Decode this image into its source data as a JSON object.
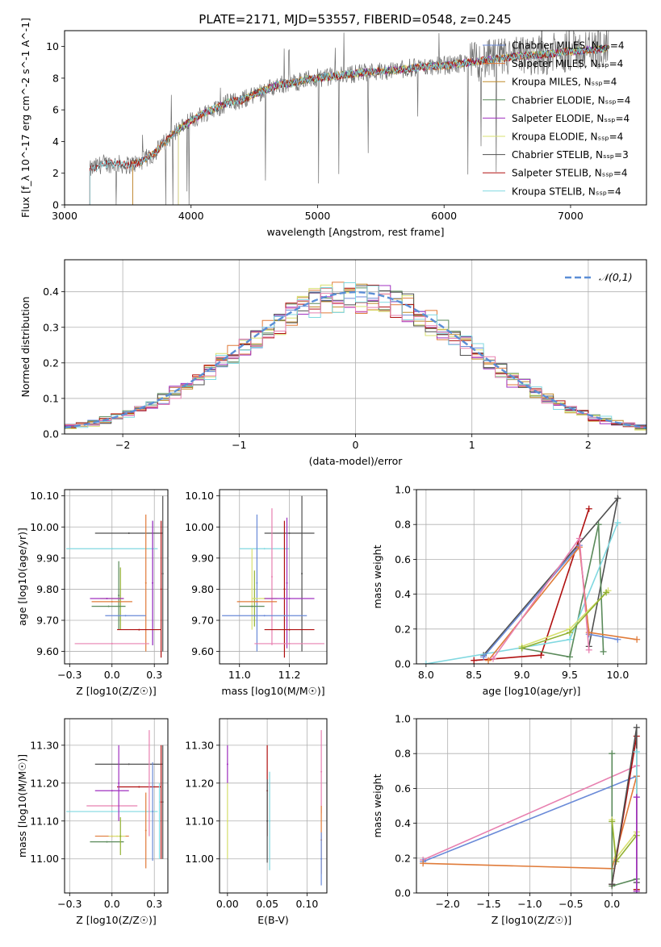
{
  "page_title": "PLATE=2171, MJD=53557, FIBERID=0548, z=0.245",
  "colors": {
    "Chabrier MILES": "#6a8ad8",
    "Salpeter MILES": "#e07b39",
    "Kroupa MILES": "#c08a28",
    "Chabrier ELODIE": "#5a8a5a",
    "Salpeter ELODIE": "#a030c0",
    "Kroupa ELODIE": "#d8e070",
    "Chabrier STELIB": "#505050",
    "Salpeter STELIB": "#b01010",
    "Kroupa STELIB": "#80d8e0",
    "Pink": "#e880b0",
    "Olive": "#90b030",
    "Data": "#707070"
  },
  "chart_data": [
    {
      "id": "spectrum",
      "type": "line",
      "title": "PLATE=2171, MJD=53557, FIBERID=0548, z=0.245",
      "xlabel": "wavelength [Angstrom, rest frame]",
      "ylabel": "Flux [f_λ 10^-17 erg cm^-2 s^-1 A^-1]",
      "xlim": [
        3000,
        7600
      ],
      "ylim": [
        0,
        11
      ],
      "xticks": [
        3000,
        4000,
        5000,
        6000,
        7000
      ],
      "yticks": [
        0,
        2,
        4,
        6,
        8,
        10
      ],
      "grid": false,
      "legend_position": "upper-right",
      "legend": [
        "Chabrier MILES, N_SSP=4",
        "Salpeter MILES, N_SSP=4",
        "Kroupa MILES, N_SSP=4",
        "Chabrier ELODIE, N_SSP=4",
        "Salpeter ELODIE, N_SSP=4",
        "Kroupa ELODIE, N_SSP=4",
        "Chabrier STELIB, N_SSP=3",
        "Salpeter STELIB, N_SSP=4",
        "Kroupa STELIB, N_SSP=4"
      ],
      "legend_series": [
        "Chabrier MILES",
        "Salpeter MILES",
        "Kroupa MILES",
        "Chabrier ELODIE",
        "Salpeter ELODIE",
        "Kroupa ELODIE",
        "Chabrier STELIB",
        "Salpeter STELIB",
        "Kroupa STELIB"
      ],
      "continuum": {
        "x": [
          3200,
          3300,
          3400,
          3500,
          3600,
          3700,
          3800,
          3900,
          4000,
          4100,
          4200,
          4300,
          4400,
          4500,
          4600,
          4700,
          4800,
          4900,
          5000,
          5200,
          5400,
          5600,
          5800,
          6000,
          6200,
          6400,
          6600,
          6800,
          7000,
          7200,
          7300
        ],
        "y": [
          2.2,
          2.6,
          2.6,
          2.5,
          2.7,
          3.2,
          4.0,
          4.8,
          5.3,
          5.8,
          6.1,
          6.5,
          6.6,
          7.0,
          7.3,
          7.6,
          7.7,
          7.9,
          8.0,
          8.2,
          8.4,
          8.5,
          8.7,
          8.8,
          9.0,
          9.2,
          9.4,
          9.5,
          9.7,
          9.8,
          9.9
        ]
      },
      "model_starts": {
        "Chabrier MILES": 3540,
        "Salpeter MILES": 3540,
        "Kroupa MILES": 3540,
        "Chabrier ELODIE": 3900,
        "Salpeter ELODIE": 3900,
        "Kroupa ELODIE": 3900,
        "Chabrier STELIB": 3200,
        "Salpeter STELIB": 3200,
        "Kroupa STELIB": 3200
      }
    },
    {
      "id": "residuals",
      "type": "histogram",
      "xlabel": "(data-model)/error",
      "ylabel": "Normed distribution",
      "xlim": [
        -2.5,
        2.5
      ],
      "ylim": [
        0,
        0.49
      ],
      "xticks": [
        -2,
        -1,
        0,
        1,
        2
      ],
      "yticks": [
        0.0,
        0.1,
        0.2,
        0.3,
        0.4
      ],
      "grid": true,
      "legend_position": "upper-right",
      "legend": [
        "𝒩(0,1)"
      ],
      "bin_width": 0.1,
      "series": [
        "Chabrier MILES",
        "Salpeter MILES",
        "Kroupa MILES",
        "Chabrier ELODIE",
        "Salpeter ELODIE",
        "Kroupa ELODIE",
        "Chabrier STELIB",
        "Salpeter STELIB",
        "Kroupa STELIB",
        "Pink"
      ]
    },
    {
      "id": "age-vs-Z",
      "type": "scatter",
      "xlabel": "Z [log10(Z/Z☉)]",
      "ylabel": "age  [log10(age/yr)]",
      "xlim": [
        -0.28,
        0.33
      ],
      "ylim": [
        9.56,
        10.12
      ],
      "xticks": [
        -0.25,
        0.0,
        0.25
      ],
      "yticks": [
        9.6,
        9.7,
        9.8,
        9.9,
        10.0,
        10.1
      ],
      "grid": true,
      "points": [
        {
          "series": "Kroupa STELIB",
          "x": 0.0,
          "y": 9.93,
          "xerr": 0.27,
          "yerr": 0.0
        },
        {
          "series": "Chabrier STELIB",
          "x": 0.1,
          "y": 9.98,
          "xerr": 0.2,
          "yerr": 0.0
        },
        {
          "series": "Chabrier STELIB",
          "x": 0.3,
          "y": 9.85,
          "xerr": 0.0,
          "yerr": 0.25
        },
        {
          "series": "Salpeter STELIB",
          "x": 0.29,
          "y": 9.8,
          "xerr": 0.0,
          "yerr": 0.22
        },
        {
          "series": "Salpeter MILES",
          "x": 0.2,
          "y": 9.82,
          "xerr": 0.0,
          "yerr": 0.22
        },
        {
          "series": "Chabrier MILES",
          "x": 0.24,
          "y": 9.82,
          "xerr": 0.0,
          "yerr": 0.2
        },
        {
          "series": "Salpeter ELODIE",
          "x": 0.24,
          "y": 9.82,
          "xerr": 0.0,
          "yerr": 0.2
        },
        {
          "series": "Chabrier ELODIE",
          "x": 0.04,
          "y": 9.78,
          "xerr": 0.0,
          "yerr": 0.11
        },
        {
          "series": "Olive",
          "x": 0.05,
          "y": 9.77,
          "xerr": 0.0,
          "yerr": 0.1
        },
        {
          "series": "Kroupa ELODIE",
          "x": 0.0,
          "y": 9.77,
          "xerr": 0.07,
          "yerr": 0.0
        },
        {
          "series": "Salpeter ELODIE",
          "x": -0.03,
          "y": 9.77,
          "xerr": 0.1,
          "yerr": 0.0
        },
        {
          "series": "Salpeter MILES",
          "x": 0.0,
          "y": 9.76,
          "xerr": 0.12,
          "yerr": 0.0
        },
        {
          "series": "Chabrier ELODIE",
          "x": -0.02,
          "y": 9.745,
          "xerr": 0.1,
          "yerr": 0.0
        },
        {
          "series": "Chabrier MILES",
          "x": 0.08,
          "y": 9.715,
          "xerr": 0.12,
          "yerr": 0.0
        },
        {
          "series": "Salpeter STELIB",
          "x": 0.16,
          "y": 9.67,
          "xerr": 0.13,
          "yerr": 0.0
        },
        {
          "series": "Pink",
          "x": 0.0,
          "y": 9.625,
          "xerr": 0.22,
          "yerr": 0.0
        }
      ]
    },
    {
      "id": "age-vs-mass",
      "type": "scatter",
      "xlabel": "mass [log10(M/M☉)]",
      "ylabel": "",
      "xlim": [
        10.92,
        11.35
      ],
      "ylim": [
        9.56,
        10.12
      ],
      "xticks": [
        11.0,
        11.2
      ],
      "yticks": [
        9.6,
        9.7,
        9.8,
        9.9,
        10.0,
        10.1
      ],
      "grid": true,
      "points": [
        {
          "series": "Kroupa STELIB",
          "x": 11.1,
          "y": 9.93,
          "xerr": 0.1,
          "yerr": 0.0
        },
        {
          "series": "Chabrier STELIB",
          "x": 11.2,
          "y": 9.98,
          "xerr": 0.1,
          "yerr": 0.0
        },
        {
          "series": "Chabrier STELIB",
          "x": 11.25,
          "y": 9.85,
          "xerr": 0.0,
          "yerr": 0.25
        },
        {
          "series": "Salpeter STELIB",
          "x": 11.18,
          "y": 9.8,
          "xerr": 0.0,
          "yerr": 0.22
        },
        {
          "series": "Chabrier MILES",
          "x": 11.07,
          "y": 9.82,
          "xerr": 0.0,
          "yerr": 0.22
        },
        {
          "series": "Salpeter ELODIE",
          "x": 11.19,
          "y": 9.82,
          "xerr": 0.0,
          "yerr": 0.21
        },
        {
          "series": "Pink",
          "x": 11.13,
          "y": 9.84,
          "xerr": 0.0,
          "yerr": 0.22
        },
        {
          "series": "Kroupa ELODIE",
          "x": 11.05,
          "y": 9.8,
          "xerr": 0.0,
          "yerr": 0.13
        },
        {
          "series": "Olive",
          "x": 11.06,
          "y": 9.77,
          "xerr": 0.0,
          "yerr": 0.09
        },
        {
          "series": "Kroupa ELODIE",
          "x": 11.1,
          "y": 9.77,
          "xerr": 0.05,
          "yerr": 0.0
        },
        {
          "series": "Salpeter ELODIE",
          "x": 11.2,
          "y": 9.77,
          "xerr": 0.1,
          "yerr": 0.0
        },
        {
          "series": "Salpeter MILES",
          "x": 11.07,
          "y": 9.76,
          "xerr": 0.08,
          "yerr": 0.0
        },
        {
          "series": "Chabrier ELODIE",
          "x": 11.05,
          "y": 9.745,
          "xerr": 0.05,
          "yerr": 0.0
        },
        {
          "series": "Chabrier MILES",
          "x": 11.1,
          "y": 9.715,
          "xerr": 0.17,
          "yerr": 0.0
        },
        {
          "series": "Salpeter STELIB",
          "x": 11.2,
          "y": 9.67,
          "xerr": 0.1,
          "yerr": 0.0
        },
        {
          "series": "Pink",
          "x": 11.2,
          "y": 9.625,
          "xerr": 0.14,
          "yerr": 0.0
        }
      ]
    },
    {
      "id": "weight-vs-age",
      "type": "line",
      "xlabel": "age  [log10(age/yr)]",
      "ylabel": "mass weight",
      "xlim": [
        7.9,
        10.3
      ],
      "ylim": [
        0,
        1
      ],
      "xticks": [
        8.0,
        8.5,
        9.0,
        9.5,
        10.0
      ],
      "yticks": [
        0.0,
        0.2,
        0.4,
        0.6,
        0.8,
        1.0
      ],
      "grid": true,
      "series": [
        {
          "name": "Chabrier STELIB",
          "x": [
            8.6,
            10.0,
            9.7
          ],
          "y": [
            0.05,
            0.95,
            0.1
          ]
        },
        {
          "name": "Salpeter STELIB",
          "x": [
            8.5,
            9.2,
            9.7
          ],
          "y": [
            0.02,
            0.05,
            0.89
          ]
        },
        {
          "name": "Chabrier ELODIE",
          "x": [
            9.0,
            9.5,
            9.8,
            9.85
          ],
          "y": [
            0.09,
            0.04,
            0.8,
            0.07
          ]
        },
        {
          "name": "Kroupa STELIB",
          "x": [
            8.0,
            9.5,
            10.0
          ],
          "y": [
            0.0,
            0.14,
            0.81
          ]
        },
        {
          "name": "Chabrier MILES",
          "x": [
            8.6,
            9.6,
            9.7,
            10.0
          ],
          "y": [
            0.04,
            0.68,
            0.17,
            0.14
          ]
        },
        {
          "name": "Salpeter MILES",
          "x": [
            8.65,
            9.6,
            9.7,
            10.2
          ],
          "y": [
            0.02,
            0.67,
            0.18,
            0.14
          ]
        },
        {
          "name": "Pink",
          "x": [
            8.7,
            9.6,
            9.7
          ],
          "y": [
            0.03,
            0.72,
            0.08
          ]
        },
        {
          "name": "Kroupa ELODIE",
          "x": [
            9.0,
            9.5,
            9.9
          ],
          "y": [
            0.1,
            0.2,
            0.42
          ]
        },
        {
          "name": "Olive",
          "x": [
            9.0,
            9.5,
            9.88
          ],
          "y": [
            0.09,
            0.18,
            0.41
          ]
        }
      ]
    },
    {
      "id": "mass-vs-Z",
      "type": "scatter",
      "xlabel": "Z [log10(Z/Z☉)]",
      "ylabel": "mass [log10(M/M☉)]",
      "xlim": [
        -0.28,
        0.33
      ],
      "ylim": [
        10.91,
        11.37
      ],
      "xticks": [
        -0.25,
        0.0,
        0.25
      ],
      "yticks": [
        11.0,
        11.1,
        11.2,
        11.3
      ],
      "grid": true,
      "points": [
        {
          "series": "Chabrier STELIB",
          "x": 0.1,
          "y": 11.25,
          "xerr": 0.2,
          "yerr": 0.0
        },
        {
          "series": "Kroupa STELIB",
          "x": 0.0,
          "y": 11.125,
          "xerr": 0.27,
          "yerr": 0.0
        },
        {
          "series": "Salpeter ELODIE",
          "x": 0.0,
          "y": 11.18,
          "xerr": 0.1,
          "yerr": 0.0
        },
        {
          "series": "Salpeter STELIB",
          "x": 0.16,
          "y": 11.19,
          "xerr": 0.13,
          "yerr": 0.0
        },
        {
          "series": "Pink",
          "x": 0.0,
          "y": 11.14,
          "xerr": 0.15,
          "yerr": 0.0
        },
        {
          "series": "Salpeter MILES",
          "x": 0.0,
          "y": 11.06,
          "xerr": 0.1,
          "yerr": 0.0
        },
        {
          "series": "Chabrier ELODIE",
          "x": -0.03,
          "y": 11.045,
          "xerr": 0.1,
          "yerr": 0.0
        },
        {
          "series": "Kroupa ELODIE",
          "x": 0.03,
          "y": 11.06,
          "xerr": 0.05,
          "yerr": 0.0
        },
        {
          "series": "Salpeter ELODIE",
          "x": 0.04,
          "y": 11.2,
          "xerr": 0.0,
          "yerr": 0.1
        },
        {
          "series": "Olive",
          "x": 0.05,
          "y": 11.06,
          "xerr": 0.0,
          "yerr": 0.05
        },
        {
          "series": "Pink",
          "x": 0.22,
          "y": 11.2,
          "xerr": 0.0,
          "yerr": 0.14
        },
        {
          "series": "Salpeter MILES",
          "x": 0.2,
          "y": 11.075,
          "xerr": 0.0,
          "yerr": 0.1
        },
        {
          "series": "Chabrier MILES",
          "x": 0.24,
          "y": 11.125,
          "xerr": 0.0,
          "yerr": 0.13
        },
        {
          "series": "Kroupa STELIB",
          "x": 0.28,
          "y": 11.1,
          "xerr": 0.0,
          "yerr": 0.1
        },
        {
          "series": "Chabrier STELIB",
          "x": 0.3,
          "y": 11.15,
          "xerr": 0.0,
          "yerr": 0.15
        },
        {
          "series": "Salpeter STELIB",
          "x": 0.29,
          "y": 11.15,
          "xerr": 0.0,
          "yerr": 0.15
        }
      ]
    },
    {
      "id": "mass-vs-ebv",
      "type": "scatter",
      "xlabel": "E(B-V)",
      "ylabel": "",
      "xlim": [
        -0.01,
        0.125
      ],
      "ylim": [
        10.91,
        11.37
      ],
      "xticks": [
        0.0,
        0.05,
        0.1
      ],
      "yticks": [
        11.0,
        11.1,
        11.2,
        11.3
      ],
      "grid": true,
      "points": [
        {
          "series": "Salpeter ELODIE",
          "x": 0.0,
          "y": 11.25,
          "xerr": 0.0,
          "yerr": 0.05
        },
        {
          "series": "Kroupa ELODIE",
          "x": 0.0,
          "y": 11.1,
          "xerr": 0.0,
          "yerr": 0.1
        },
        {
          "series": "Salpeter STELIB",
          "x": 0.05,
          "y": 11.18,
          "xerr": 0.0,
          "yerr": 0.12
        },
        {
          "series": "Chabrier STELIB",
          "x": 0.05,
          "y": 11.1,
          "xerr": 0.0,
          "yerr": 0.11
        },
        {
          "series": "Kroupa STELIB",
          "x": 0.053,
          "y": 11.1,
          "xerr": 0.0,
          "yerr": 0.13
        },
        {
          "series": "Pink",
          "x": 0.118,
          "y": 11.23,
          "xerr": 0.0,
          "yerr": 0.11
        },
        {
          "series": "Salpeter MILES",
          "x": 0.118,
          "y": 11.05,
          "xerr": 0.0,
          "yerr": 0.09
        },
        {
          "series": "Chabrier MILES",
          "x": 0.118,
          "y": 11.0,
          "xerr": 0.0,
          "yerr": 0.07
        }
      ]
    },
    {
      "id": "weight-vs-Z",
      "type": "line",
      "xlabel": "Z [log10(Z/Z☉)]",
      "ylabel": "mass weight",
      "xlim": [
        -2.38,
        0.42
      ],
      "ylim": [
        0,
        1
      ],
      "xticks": [
        -2.0,
        -1.5,
        -1.0,
        -0.5,
        0.0
      ],
      "yticks": [
        0.0,
        0.2,
        0.4,
        0.6,
        0.8,
        1.0
      ],
      "grid": true,
      "series": [
        {
          "name": "Pink",
          "x": [
            -2.3,
            0.3
          ],
          "y": [
            0.19,
            0.73
          ]
        },
        {
          "name": "Chabrier MILES",
          "x": [
            -2.3,
            0.3
          ],
          "y": [
            0.18,
            0.67
          ]
        },
        {
          "name": "Salpeter MILES",
          "x": [
            -2.3,
            0.0,
            0.3,
            0.3
          ],
          "y": [
            0.17,
            0.14,
            0.67,
            0.01
          ]
        },
        {
          "name": "Chabrier ELODIE",
          "x": [
            0.0,
            0.0,
            0.3
          ],
          "y": [
            0.8,
            0.04,
            0.08
          ]
        },
        {
          "name": "Kroupa ELODIE",
          "x": [
            0.0,
            0.05,
            0.3
          ],
          "y": [
            0.42,
            0.2,
            0.35
          ]
        },
        {
          "name": "Olive",
          "x": [
            0.0,
            0.05,
            0.3
          ],
          "y": [
            0.41,
            0.18,
            0.33
          ]
        },
        {
          "name": "Salpeter STELIB",
          "x": [
            0.0,
            0.3,
            0.3
          ],
          "y": [
            0.05,
            0.9,
            0.02
          ]
        },
        {
          "name": "Chabrier STELIB",
          "x": [
            0.0,
            0.3,
            0.3
          ],
          "y": [
            0.05,
            0.95,
            0.06
          ]
        },
        {
          "name": "Kroupa STELIB",
          "x": [
            0.3,
            0.3
          ],
          "y": [
            0.81,
            0.0
          ]
        },
        {
          "name": "Salpeter ELODIE",
          "x": [
            0.3,
            0.3
          ],
          "y": [
            0.01,
            0.55
          ]
        }
      ]
    }
  ]
}
